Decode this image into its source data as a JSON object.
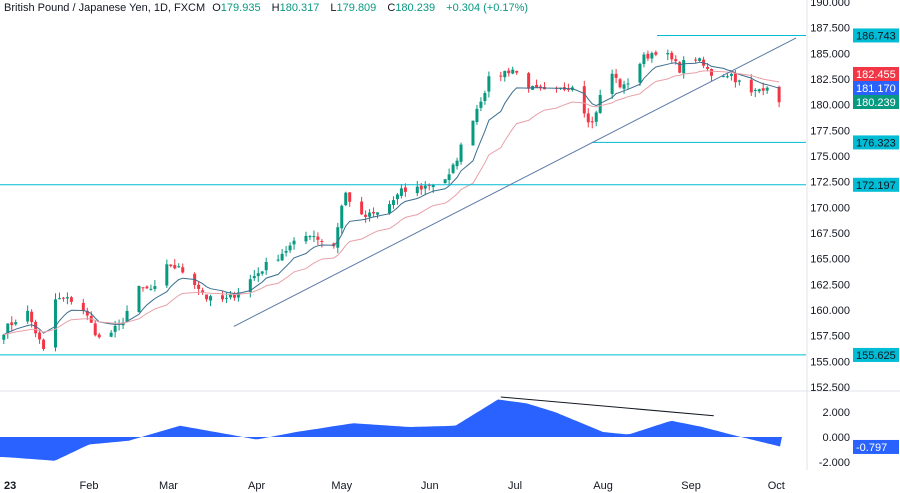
{
  "header": {
    "symbol": "British Pound / Japanese Yen, 1D, FXCM",
    "open_label": "O",
    "open": "179.935",
    "high_label": "H",
    "high": "180.317",
    "low_label": "L",
    "low": "179.809",
    "close_label": "C",
    "close": "180.239",
    "change": "+0.304 (+0.17%)"
  },
  "chart_data": [
    {
      "type": "candlestick",
      "yaxis_ticks": [
        "190.000",
        "187.500",
        "185.000",
        "182.500",
        "180.000",
        "177.500",
        "175.000",
        "172.500",
        "170.000",
        "167.500",
        "165.000",
        "162.500",
        "160.000",
        "157.500",
        "155.000",
        "152.500"
      ],
      "ylim": [
        152.5,
        190
      ],
      "xaxis_ticks": [
        "23",
        "Feb",
        "Mar",
        "Apr",
        "May",
        "Jun",
        "Jul",
        "Aug",
        "Sep",
        "Oct"
      ],
      "approx_closes": [
        [
          "2023-01-02",
          158
        ],
        [
          "2023-01-10",
          160
        ],
        [
          "2023-01-16",
          156
        ],
        [
          "2023-01-20",
          161
        ],
        [
          "2023-01-28",
          161
        ],
        [
          "2023-02-05",
          157
        ],
        [
          "2023-02-12",
          158.5
        ],
        [
          "2023-02-18",
          162
        ],
        [
          "2023-02-25",
          162
        ],
        [
          "2023-03-01",
          164.5
        ],
        [
          "2023-03-08",
          163.5
        ],
        [
          "2023-03-15",
          161
        ],
        [
          "2023-03-22",
          161
        ],
        [
          "2023-03-28",
          162.5
        ],
        [
          "2023-04-05",
          164.5
        ],
        [
          "2023-04-12",
          166
        ],
        [
          "2023-04-20",
          167.5
        ],
        [
          "2023-04-28",
          166
        ],
        [
          "2023-05-02",
          171.5
        ],
        [
          "2023-05-08",
          169
        ],
        [
          "2023-05-15",
          169.5
        ],
        [
          "2023-05-22",
          171.5
        ],
        [
          "2023-05-30",
          172
        ],
        [
          "2023-06-08",
          173
        ],
        [
          "2023-06-15",
          178
        ],
        [
          "2023-06-22",
          182.5
        ],
        [
          "2023-06-30",
          183.5
        ],
        [
          "2023-07-07",
          181.5
        ],
        [
          "2023-07-14",
          181
        ],
        [
          "2023-07-21",
          182
        ],
        [
          "2023-07-28",
          178
        ],
        [
          "2023-08-03",
          183.5
        ],
        [
          "2023-08-08",
          181.5
        ],
        [
          "2023-08-15",
          184.5
        ],
        [
          "2023-08-21",
          185.5
        ],
        [
          "2023-08-28",
          183.5
        ],
        [
          "2023-09-01",
          185
        ],
        [
          "2023-09-08",
          183
        ],
        [
          "2023-09-15",
          183
        ],
        [
          "2023-09-22",
          181
        ],
        [
          "2023-09-28",
          182
        ],
        [
          "2023-10-03",
          180.239
        ]
      ],
      "horizontal_levels": [
        {
          "value": 186.743,
          "label": "186.743",
          "from": "2023-08-20"
        },
        {
          "value": 176.323,
          "label": "176.323",
          "from": "2023-07-28"
        },
        {
          "value": 172.197,
          "label": "172.197"
        },
        {
          "value": 155.625,
          "label": "155.625"
        }
      ],
      "trendline": {
        "from": [
          "2023-03-24",
          158.4
        ],
        "to": [
          "2023-10-08",
          186.5
        ]
      },
      "price_labels": [
        {
          "label": "182.455",
          "value": 182.455,
          "color": "#f23645"
        },
        {
          "label": "181.170",
          "value": 181.17,
          "color": "#2962ff"
        },
        {
          "label": "180.239",
          "value": 180.239,
          "color": "#089981"
        }
      ],
      "colors": {
        "up": "#089981",
        "down": "#f23645",
        "level": "#00bcd4",
        "trend": "#5b7aa8",
        "ma_fast": "#3c6e8f",
        "ma_slow": "#e8a0a8"
      }
    },
    {
      "type": "area",
      "yaxis_ticks": [
        "2.000",
        "0.000",
        "-2.000"
      ],
      "ylim": [
        -2.8,
        3.4
      ],
      "approx_values": [
        [
          "2023-01-02",
          -1.6
        ],
        [
          "2023-01-20",
          -1.9
        ],
        [
          "2023-02-01",
          -0.6
        ],
        [
          "2023-02-15",
          -0.3
        ],
        [
          "2023-03-05",
          0.9
        ],
        [
          "2023-03-20",
          0.3
        ],
        [
          "2023-04-01",
          -0.2
        ],
        [
          "2023-04-15",
          0.4
        ],
        [
          "2023-05-05",
          1.1
        ],
        [
          "2023-05-25",
          0.8
        ],
        [
          "2023-06-10",
          0.9
        ],
        [
          "2023-06-25",
          3.0
        ],
        [
          "2023-07-05",
          2.7
        ],
        [
          "2023-07-15",
          2.0
        ],
        [
          "2023-08-01",
          0.4
        ],
        [
          "2023-08-10",
          0.2
        ],
        [
          "2023-08-25",
          1.3
        ],
        [
          "2023-09-05",
          0.8
        ],
        [
          "2023-09-15",
          0.2
        ],
        [
          "2023-10-03",
          -0.797
        ]
      ],
      "current_label": "-0.797",
      "trendline": {
        "from": [
          "2023-06-26",
          3.2
        ],
        "to": [
          "2023-09-09",
          1.7
        ]
      },
      "color": "#2962ff"
    }
  ]
}
